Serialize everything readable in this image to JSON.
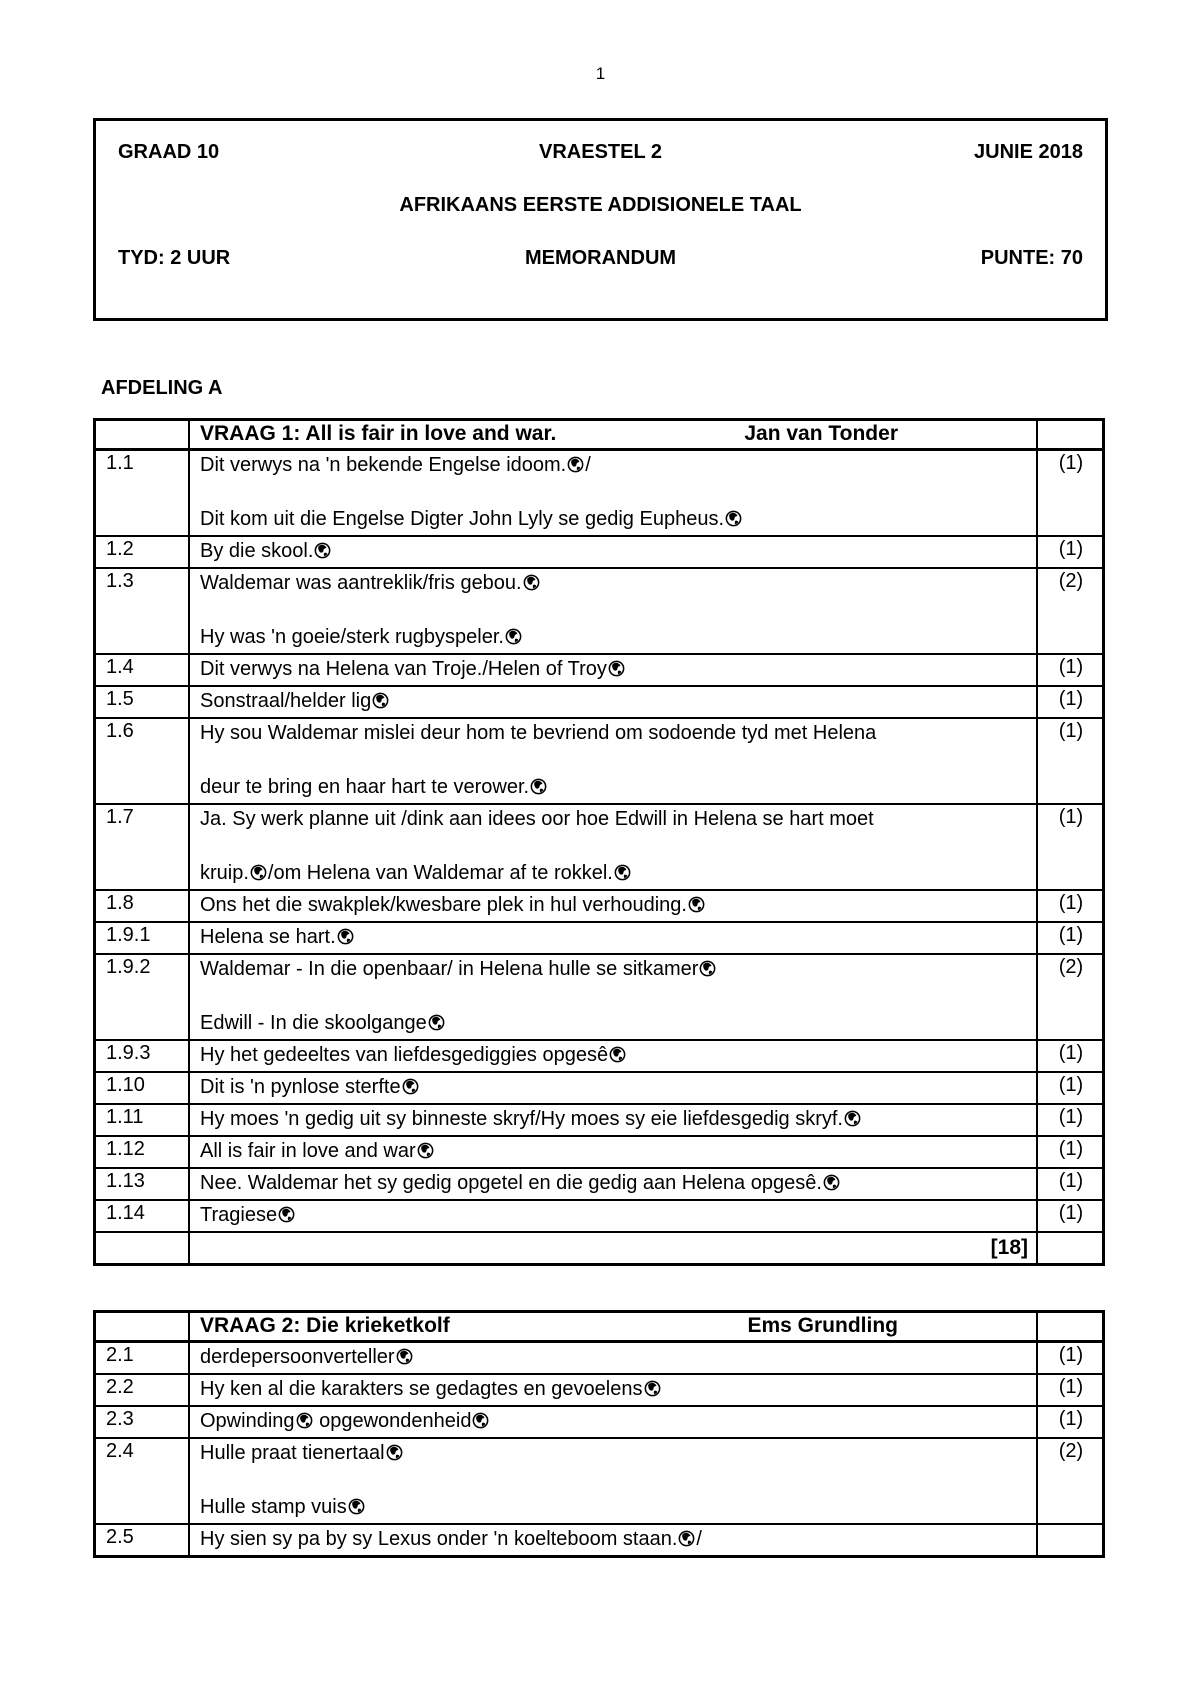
{
  "colors": {
    "text": "#000000",
    "background": "#ffffff",
    "border": "#000000"
  },
  "icons": {
    "mark_icon": "globe-mark-icon",
    "mark_marker": "🌍"
  },
  "page": {
    "number": "1"
  },
  "header_box": {
    "grade": "GRAAD 10",
    "paper": "VRAESTEL 2",
    "date": "JUNIE 2018",
    "subject": "AFRIKAANS EERSTE ADDISIONELE TAAL",
    "time": "TYD: 2 UUR",
    "doc_type": "MEMORANDUM",
    "marks": "PUNTE: 70"
  },
  "section_heading": "AFDELING A",
  "tables": [
    {
      "title": "VRAAG 1: All is fair in love and war.",
      "author": "Jan van Tonder",
      "total": "[18]",
      "rows": [
        {
          "num": "1.1",
          "lines": [
            "Dit verwys na 'n bekende Engelse idoom.🌍/",
            "",
            "Dit kom uit die Engelse Digter John Lyly se gedig Eupheus.🌍"
          ],
          "mark": "(1)"
        },
        {
          "num": "1.2",
          "lines": [
            "By die skool.🌍"
          ],
          "mark": "(1)"
        },
        {
          "num": "1.3",
          "lines": [
            "Waldemar was aantreklik/fris gebou.🌍",
            "",
            "Hy was 'n goeie/sterk rugbyspeler.🌍"
          ],
          "mark": "(2)"
        },
        {
          "num": "1.4",
          "lines": [
            "Dit verwys na Helena van Troje./Helen of Troy🌍"
          ],
          "mark": "(1)"
        },
        {
          "num": "1.5",
          "lines": [
            "Sonstraal/helder lig🌍"
          ],
          "mark": "(1)"
        },
        {
          "num": "1.6",
          "lines": [
            "Hy sou Waldemar mislei deur hom te bevriend om sodoende tyd met Helena",
            "",
            "deur te bring en haar hart te verower.🌍"
          ],
          "mark": "(1)"
        },
        {
          "num": "1.7",
          "lines": [
            "Ja. Sy werk planne uit /dink aan idees oor hoe Edwill in Helena se hart moet",
            "",
            "kruip.🌍/om Helena van Waldemar af te rokkel.🌍"
          ],
          "mark": "(1)"
        },
        {
          "num": "1.8",
          "lines": [
            "Ons het die swakplek/kwesbare plek in hul verhouding.🌍"
          ],
          "mark": "(1)"
        },
        {
          "num": "1.9.1",
          "lines": [
            "Helena se hart.🌍"
          ],
          "mark": "(1)"
        },
        {
          "num": "1.9.2",
          "lines": [
            "Waldemar - In die openbaar/ in Helena hulle se sitkamer🌍",
            "",
            "Edwill - In die skoolgange🌍"
          ],
          "mark": "(2)"
        },
        {
          "num": "1.9.3",
          "lines": [
            "Hy het gedeeltes van liefdesgediggies opgesê🌍"
          ],
          "mark": "(1)"
        },
        {
          "num": "1.10",
          "lines": [
            "Dit is 'n pynlose sterfte🌍"
          ],
          "mark": "(1)"
        },
        {
          "num": "1.11",
          "lines": [
            "Hy moes 'n gedig uit sy binneste skryf/Hy moes sy eie liefdesgedig skryf.🌍"
          ],
          "mark": "(1)"
        },
        {
          "num": "1.12",
          "lines": [
            "All is fair in love and war🌍"
          ],
          "mark": "(1)"
        },
        {
          "num": "1.13",
          "lines": [
            "Nee. Waldemar het sy gedig opgetel en die gedig aan Helena opgesê.🌍"
          ],
          "mark": "(1)"
        },
        {
          "num": "1.14",
          "lines": [
            "Tragiese🌍"
          ],
          "mark": "(1)"
        }
      ]
    },
    {
      "title": "VRAAG 2: Die krieketkolf",
      "author": "Ems Grundling",
      "total": null,
      "rows": [
        {
          "num": "2.1",
          "lines": [
            "derdepersoonverteller🌍"
          ],
          "mark": "(1)"
        },
        {
          "num": "2.2",
          "lines": [
            "Hy ken al die karakters se gedagtes en gevoelens🌍"
          ],
          "mark": "(1)"
        },
        {
          "num": "2.3",
          "lines": [
            "Opwinding🌍 opgewondenheid🌍"
          ],
          "mark": "(1)"
        },
        {
          "num": "2.4",
          "lines": [
            "Hulle praat tienertaal🌍",
            "",
            "Hulle stamp vuis🌍"
          ],
          "mark": "(2)"
        },
        {
          "num": "2.5",
          "lines": [
            "Hy sien sy pa by sy Lexus onder 'n koelteboom staan.🌍/"
          ],
          "mark": ""
        }
      ]
    }
  ]
}
